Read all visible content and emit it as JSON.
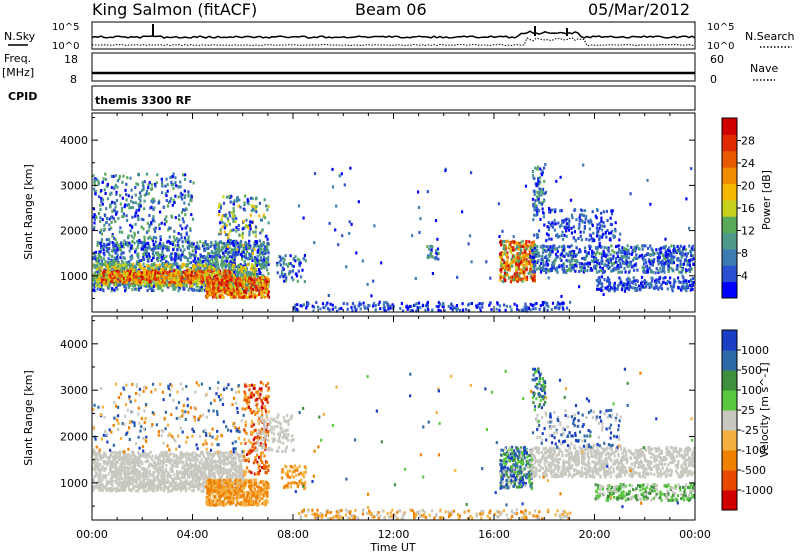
{
  "header": {
    "station": "King Salmon (fitACF)",
    "beam": "Beam 06",
    "date": "05/Mar/2012"
  },
  "strip_labels": {
    "nsky": "N.Sky",
    "nsearch": "N.Search",
    "freq": "Freq.",
    "freq_unit": "[MHz]",
    "nave": "Nave",
    "cpid": "CPID",
    "cpid_value": "themis 3300 RF"
  },
  "strip_ticks": {
    "noise_left": [
      "10^5",
      "10^0"
    ],
    "noise_right": [
      "10^5",
      "10^0"
    ],
    "freq_left": [
      "18",
      "8"
    ],
    "nave_right": [
      "60",
      "0"
    ]
  },
  "chart_data": [
    {
      "type": "heatmap",
      "name": "power",
      "ylabel": "Slant Range [km]",
      "xlabel": "",
      "xlim": [
        0,
        24
      ],
      "ylim": [
        200,
        4600
      ],
      "x_ticks": [
        0,
        4,
        8,
        12,
        16,
        20,
        24
      ],
      "y_ticks": [
        1000,
        2000,
        3000,
        4000
      ],
      "y_tick_labels": [
        "1000",
        "2000",
        "3000",
        "4000"
      ],
      "colorbar": {
        "label": "Power [dB]",
        "ticks": [
          "4",
          "8",
          "12",
          "16",
          "20",
          "24",
          "28"
        ],
        "colors": [
          "#0000ff",
          "#2a4fd0",
          "#3d7bb3",
          "#4e9a8a",
          "#5aa95a",
          "#c8d21e",
          "#f4b800",
          "#f08c00",
          "#e85a00",
          "#e02a00",
          "#d00000"
        ]
      }
    },
    {
      "type": "heatmap",
      "name": "velocity",
      "ylabel": "Slant Range [km]",
      "xlabel": "Time UT",
      "xlim": [
        0,
        24
      ],
      "ylim": [
        200,
        4600
      ],
      "x_ticks": [
        0,
        4,
        8,
        12,
        16,
        20,
        24
      ],
      "x_tick_labels": [
        "00:00",
        "04:00",
        "08:00",
        "12:00",
        "16:00",
        "20:00",
        "00:00"
      ],
      "y_ticks": [
        1000,
        2000,
        3000,
        4000
      ],
      "y_tick_labels": [
        "1000",
        "2000",
        "3000",
        "4000"
      ],
      "colorbar": {
        "label": "Velocity [m s^-1]",
        "ticks": [
          "1000",
          "500",
          "100",
          "25",
          "-25",
          "-100",
          "-500",
          "-1000"
        ],
        "colors": [
          "#1a3fc4",
          "#2f6aa8",
          "#3e8f3e",
          "#5ac840",
          "#c8c8c0",
          "#f4b040",
          "#f08000",
          "#e84800",
          "#d00000"
        ]
      }
    }
  ]
}
